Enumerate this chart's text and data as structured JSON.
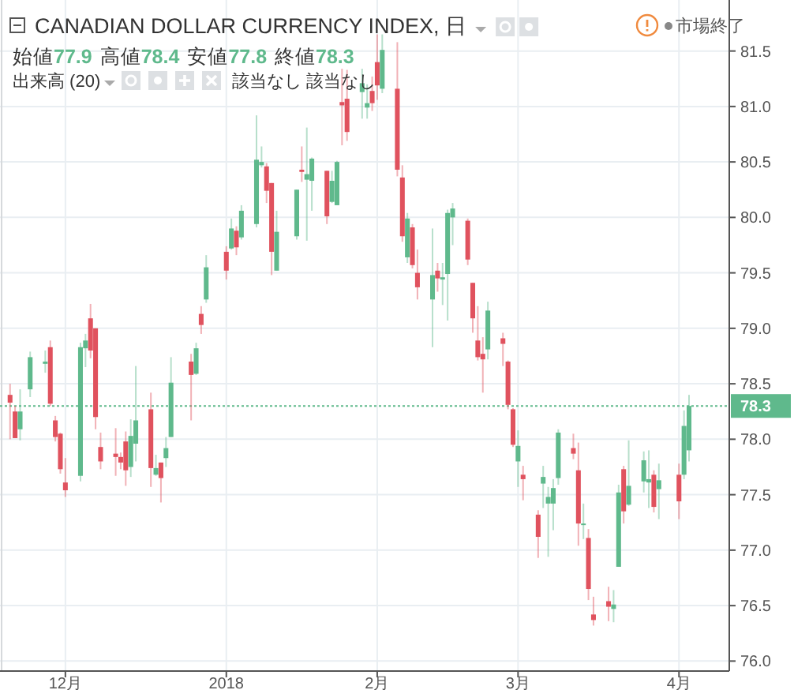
{
  "chart_data": {
    "type": "candlestick",
    "title": "CANADIAN DOLLAR CURRENCY INDEX, 日",
    "subtitle": "始値77.9 高値78.4 安値77.8 終値78.3",
    "annotations": [
      "出来高 (20)",
      "該当なし",
      "該当なし",
      "市場終了"
    ],
    "x": [
      "2017-11-20",
      "2017-11-21",
      "2017-11-22",
      "2017-11-24",
      "2017-11-27",
      "2017-11-28",
      "2017-11-29",
      "2017-11-30",
      "2017-12-01",
      "2017-12-04",
      "2017-12-05",
      "2017-12-06",
      "2017-12-07",
      "2017-12-08",
      "2017-12-11",
      "2017-12-12",
      "2017-12-13",
      "2017-12-14",
      "2017-12-15",
      "2017-12-18",
      "2017-12-19",
      "2017-12-20",
      "2017-12-21",
      "2017-12-22",
      "2017-12-26",
      "2017-12-27",
      "2017-12-28",
      "2017-12-29",
      "2018-01-02",
      "2018-01-03",
      "2018-01-04",
      "2018-01-05",
      "2018-01-08",
      "2018-01-09",
      "2018-01-10",
      "2018-01-11",
      "2018-01-12",
      "2018-01-16",
      "2018-01-17",
      "2018-01-18",
      "2018-01-19",
      "2018-01-22",
      "2018-01-23",
      "2018-01-24",
      "2018-01-25",
      "2018-01-26",
      "2018-01-29",
      "2018-01-30",
      "2018-01-31",
      "2018-02-01",
      "2018-02-02",
      "2018-02-05",
      "2018-02-06",
      "2018-02-07",
      "2018-02-08",
      "2018-02-09",
      "2018-02-12",
      "2018-02-13",
      "2018-02-14",
      "2018-02-15",
      "2018-02-16",
      "2018-02-19",
      "2018-02-20",
      "2018-02-21",
      "2018-02-22",
      "2018-02-23",
      "2018-02-26",
      "2018-02-27",
      "2018-02-28",
      "2018-03-01",
      "2018-03-02",
      "2018-03-05",
      "2018-03-06",
      "2018-03-07",
      "2018-03-08",
      "2018-03-09",
      "2018-03-12",
      "2018-03-13",
      "2018-03-14",
      "2018-03-15",
      "2018-03-16",
      "2018-03-19",
      "2018-03-20",
      "2018-03-21",
      "2018-03-22",
      "2018-03-23",
      "2018-03-26",
      "2018-03-27",
      "2018-03-28",
      "2018-03-29",
      "2018-04-02",
      "2018-04-03",
      "2018-04-04"
    ],
    "ohlc": [
      [
        78.4,
        78.5,
        78.0,
        78.33
      ],
      [
        78.25,
        78.3,
        78.01,
        78.01
      ],
      [
        78.09,
        78.45,
        77.99,
        78.25
      ],
      [
        78.45,
        78.79,
        78.38,
        78.74
      ],
      [
        78.68,
        78.8,
        78.6,
        78.7
      ],
      [
        78.83,
        78.89,
        78.3,
        78.32
      ],
      [
        78.17,
        78.21,
        77.98,
        78.02
      ],
      [
        78.05,
        78.06,
        77.69,
        77.73
      ],
      [
        77.61,
        77.83,
        77.48,
        77.54
      ],
      [
        77.67,
        78.87,
        77.62,
        78.83
      ],
      [
        78.82,
        78.95,
        78.65,
        78.89
      ],
      [
        79.09,
        79.22,
        78.73,
        78.8
      ],
      [
        79.0,
        79.0,
        78.09,
        78.2
      ],
      [
        77.93,
        78.06,
        77.73,
        77.8
      ],
      [
        77.87,
        78.1,
        77.67,
        77.84
      ],
      [
        77.84,
        77.88,
        77.73,
        77.79
      ],
      [
        77.98,
        78.07,
        77.58,
        77.72
      ],
      [
        77.75,
        78.18,
        77.66,
        78.03
      ],
      [
        77.96,
        78.66,
        77.8,
        78.17
      ],
      [
        78.27,
        78.42,
        77.57,
        77.74
      ],
      [
        77.68,
        77.86,
        77.67,
        77.74
      ],
      [
        77.79,
        77.79,
        77.43,
        77.65
      ],
      [
        77.83,
        78.02,
        77.75,
        77.92
      ],
      [
        78.02,
        78.74,
        78.02,
        78.51
      ],
      [
        78.7,
        78.77,
        78.17,
        78.58
      ],
      [
        78.59,
        78.87,
        78.58,
        78.82
      ],
      [
        79.13,
        79.2,
        78.95,
        79.03
      ],
      [
        79.26,
        79.66,
        79.23,
        79.55
      ],
      [
        79.69,
        79.74,
        79.44,
        79.52
      ],
      [
        79.72,
        79.99,
        79.71,
        79.9
      ],
      [
        79.88,
        79.92,
        79.66,
        79.73
      ],
      [
        79.82,
        80.11,
        79.8,
        80.06
      ],
      [
        79.94,
        80.92,
        79.91,
        80.52
      ],
      [
        80.47,
        80.64,
        80.45,
        80.5
      ],
      [
        80.46,
        80.49,
        80.13,
        80.24
      ],
      [
        80.31,
        80.31,
        79.48,
        79.69
      ],
      [
        79.52,
        80.06,
        79.52,
        79.87
      ],
      [
        79.83,
        80.25,
        79.8,
        80.25
      ],
      [
        80.43,
        80.64,
        80.32,
        80.41
      ],
      [
        80.34,
        80.81,
        79.79,
        80.39
      ],
      [
        80.33,
        80.54,
        80.06,
        80.53
      ],
      [
        80.42,
        80.42,
        79.94,
        80.01
      ],
      [
        80.14,
        80.42,
        80.13,
        80.33
      ],
      [
        80.11,
        80.51,
        80.11,
        80.5
      ],
      [
        81.04,
        81.34,
        80.65,
        81.01
      ],
      [
        81.07,
        81.33,
        80.69,
        80.77
      ],
      [
        81.13,
        81.34,
        80.89,
        81.21
      ],
      [
        80.99,
        81.2,
        80.89,
        81.03
      ],
      [
        81.14,
        81.27,
        80.96,
        81.03
      ],
      [
        81.4,
        81.65,
        81.06,
        81.19
      ],
      [
        81.16,
        81.65,
        81.12,
        81.51
      ],
      [
        81.16,
        81.58,
        80.37,
        80.43
      ],
      [
        80.36,
        80.47,
        79.78,
        79.83
      ],
      [
        79.64,
        80.04,
        79.59,
        79.99
      ],
      [
        79.91,
        79.94,
        79.54,
        79.57
      ],
      [
        79.5,
        79.71,
        79.26,
        79.37
      ],
      [
        79.26,
        79.9,
        78.83,
        79.48
      ],
      [
        79.52,
        79.59,
        79.33,
        79.45
      ],
      [
        79.44,
        79.59,
        79.21,
        79.46
      ],
      [
        79.49,
        80.07,
        79.07,
        80.04
      ],
      [
        80.0,
        80.13,
        79.75,
        80.08
      ],
      [
        79.97,
        79.99,
        79.57,
        79.62
      ],
      [
        79.41,
        79.41,
        78.96,
        79.09
      ],
      [
        78.89,
        79.2,
        78.71,
        78.74
      ],
      [
        78.77,
        78.92,
        78.42,
        78.72
      ],
      [
        78.81,
        79.24,
        78.72,
        79.16
      ],
      [
        78.91,
        78.96,
        78.66,
        78.86
      ],
      [
        78.7,
        78.71,
        78.27,
        78.31
      ],
      [
        78.27,
        78.28,
        77.93,
        77.95
      ],
      [
        77.8,
        78.08,
        77.57,
        77.94
      ],
      [
        77.68,
        77.76,
        77.45,
        77.64
      ],
      [
        77.32,
        77.36,
        76.93,
        77.12
      ],
      [
        77.6,
        77.76,
        77.38,
        77.66
      ],
      [
        77.42,
        77.57,
        76.94,
        77.48
      ],
      [
        77.42,
        77.64,
        77.18,
        77.56
      ],
      [
        77.65,
        78.09,
        77.59,
        78.06
      ],
      [
        77.92,
        78.05,
        77.82,
        77.87
      ],
      [
        77.72,
        77.97,
        77.04,
        77.24
      ],
      [
        77.23,
        77.42,
        77.1,
        77.24
      ],
      [
        77.11,
        77.19,
        76.55,
        76.65
      ],
      [
        76.42,
        76.58,
        76.32,
        76.37
      ],
      [
        76.54,
        76.67,
        76.36,
        76.49
      ],
      [
        76.47,
        76.64,
        76.35,
        76.51
      ],
      [
        76.85,
        77.59,
        76.85,
        77.52
      ],
      [
        77.73,
        77.76,
        77.24,
        77.35
      ],
      [
        77.41,
        77.99,
        77.4,
        77.58
      ],
      [
        77.62,
        77.89,
        77.52,
        77.81
      ],
      [
        77.61,
        77.9,
        77.38,
        77.64
      ],
      [
        77.68,
        77.72,
        77.34,
        77.39
      ],
      [
        77.55,
        77.78,
        77.28,
        77.63
      ],
      [
        77.68,
        77.78,
        77.28,
        77.44
      ],
      [
        77.68,
        78.26,
        77.64,
        78.12
      ],
      [
        77.9,
        78.4,
        77.8,
        78.3
      ]
    ],
    "xticks": [
      {
        "value": "2017-12-01",
        "label": "12月"
      },
      {
        "value": "2018-01-02",
        "label": "2018"
      },
      {
        "value": "2018-02-01",
        "label": "2月"
      },
      {
        "value": "2018-03-01",
        "label": "3月"
      },
      {
        "value": "2018-04-02",
        "label": "4月"
      }
    ],
    "xlim": [
      "2017-11-18",
      "2018-04-12"
    ],
    "ylim": [
      75.91,
      81.96
    ],
    "yticks": [
      {
        "value": 76,
        "label": "76.0"
      },
      76.5,
      {
        "value": 77,
        "label": "77.0"
      },
      77.5,
      {
        "value": 78,
        "label": "78.0"
      },
      78.5,
      {
        "value": 79,
        "label": "79.0"
      },
      79.5,
      {
        "value": 80,
        "label": "80.0"
      },
      80.5,
      {
        "value": 81,
        "label": "81.0"
      },
      81.5
    ],
    "ref_lines": [
      {
        "axis": "y",
        "value": 78.3,
        "label": "78.3",
        "color": "#5fb98c",
        "line_style": "dotted"
      }
    ],
    "grid": true
  }
}
